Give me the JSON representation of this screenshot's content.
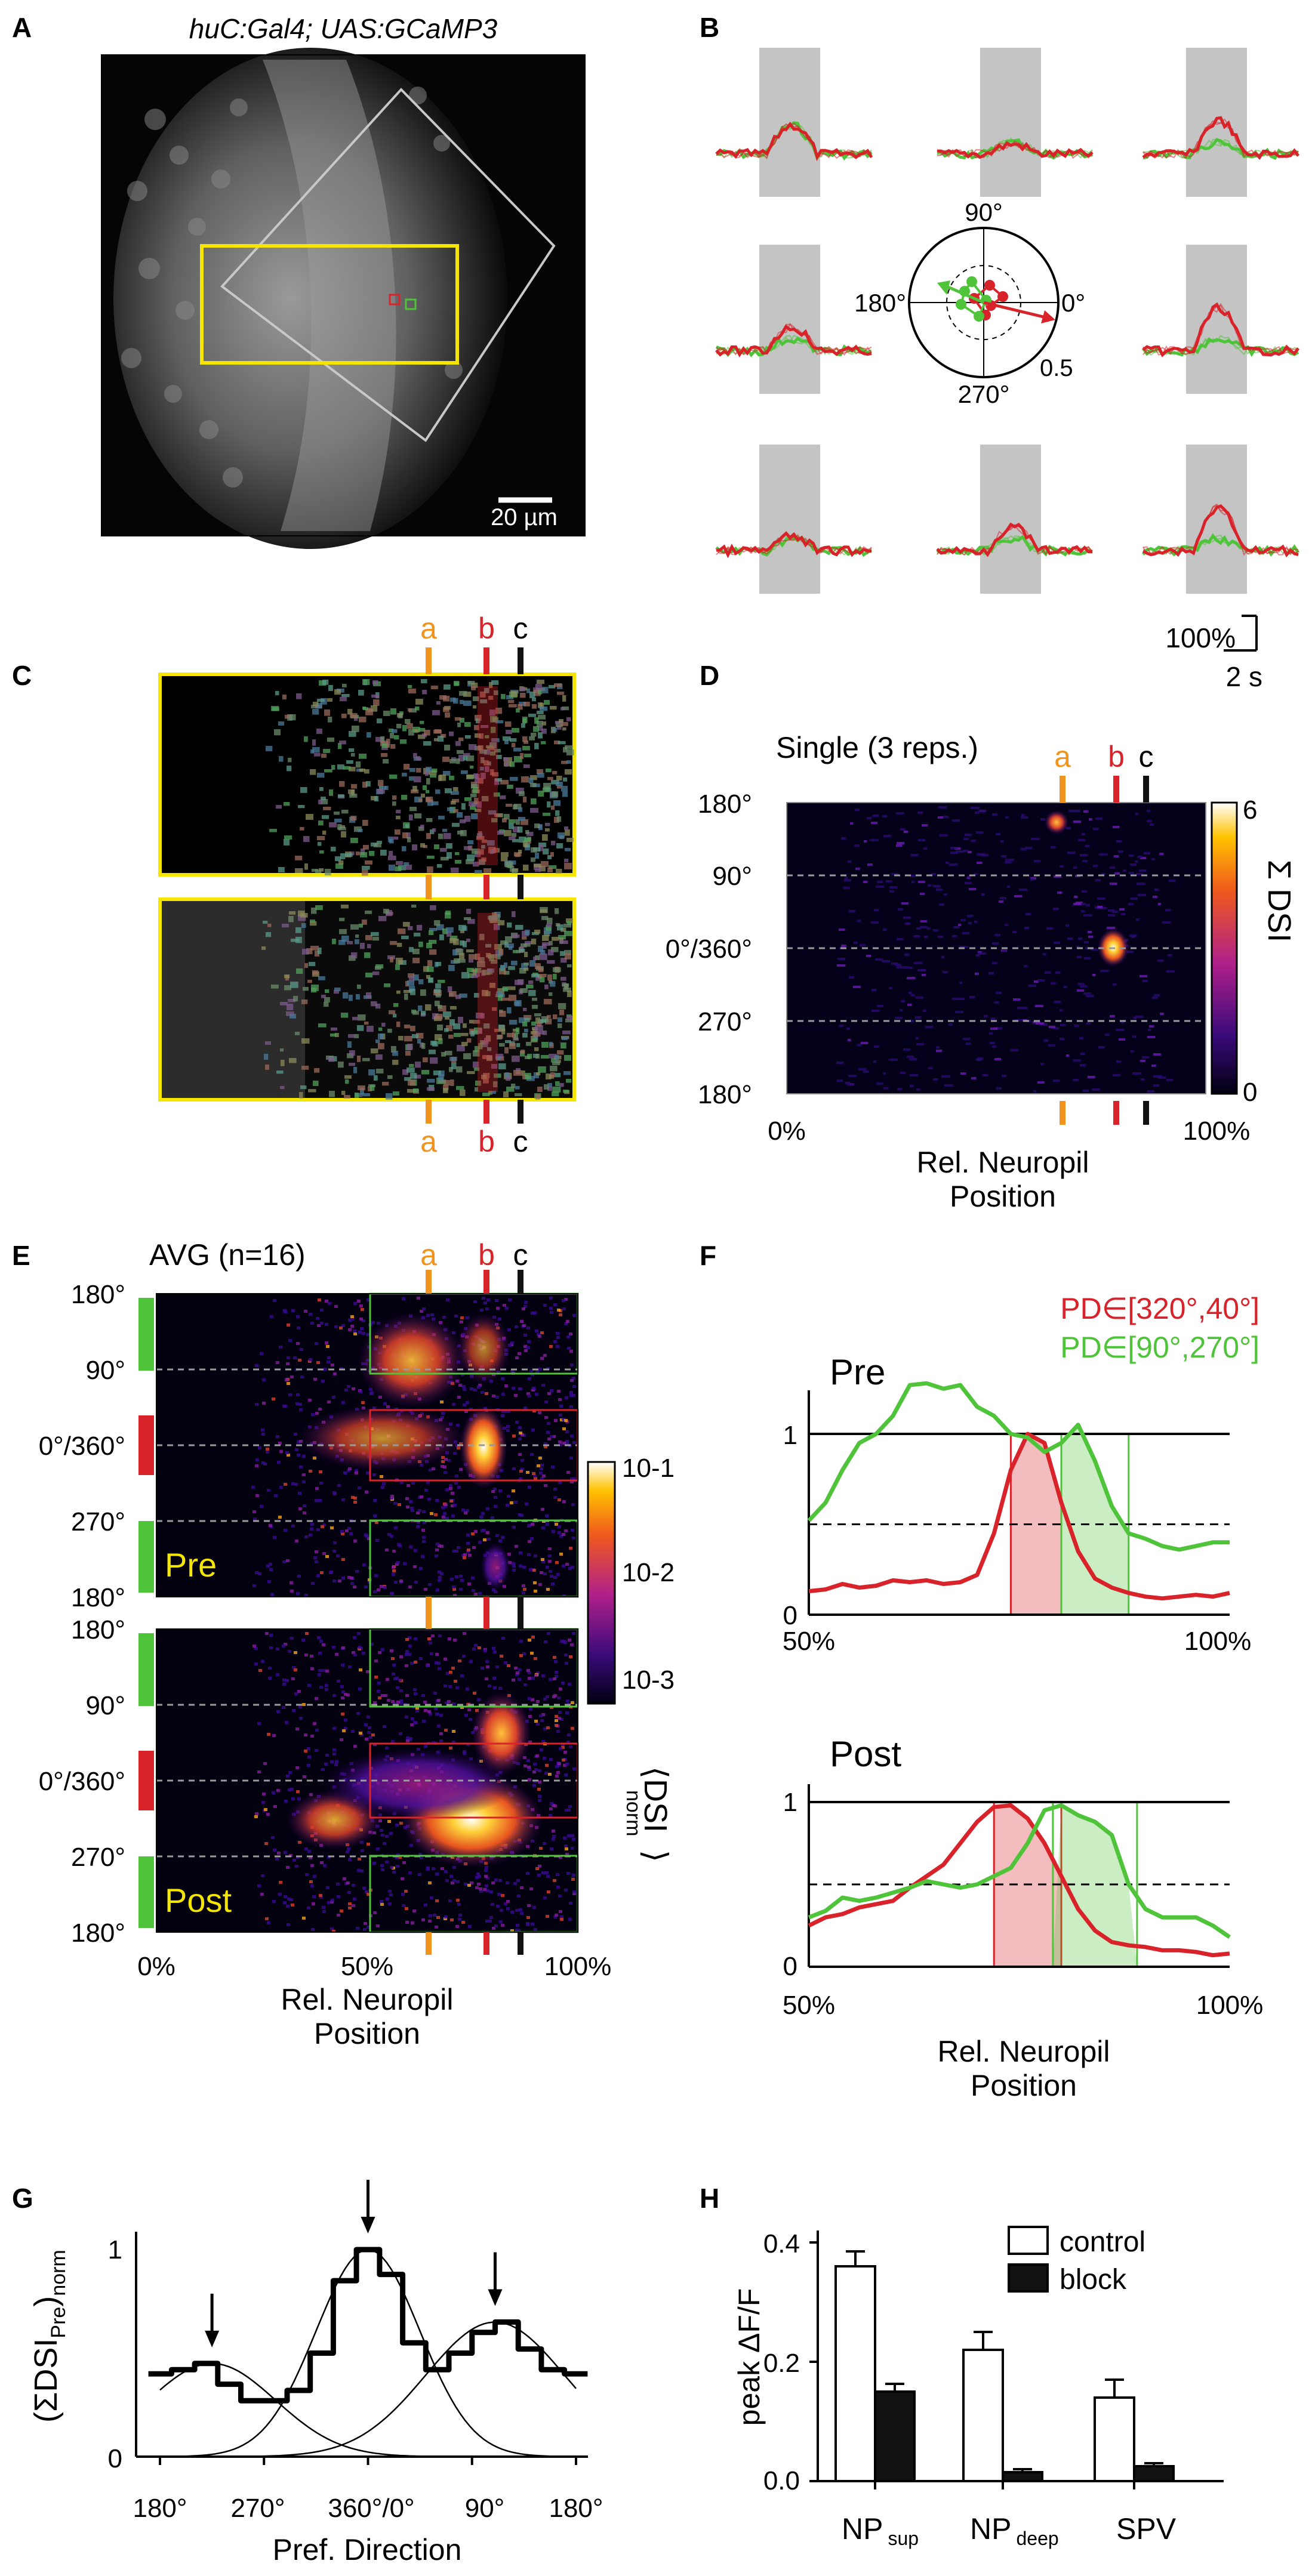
{
  "panel_A": {
    "letter": "A",
    "title": "huC:Gal4; UAS:GCaMP3",
    "scalebar": "20 µm"
  },
  "panel_B": {
    "letter": "B",
    "polar_ticks": [
      "90°",
      "180°",
      "0°",
      "270°"
    ],
    "polar_radius_label": "0.5",
    "scale_y": "100%",
    "scale_x": "2 s"
  },
  "panel_C": {
    "letter": "C",
    "markers": [
      "a",
      "b",
      "c"
    ]
  },
  "panel_D": {
    "letter": "D",
    "title": "Single (3 reps.)",
    "y_ticks": [
      "180°",
      "90°",
      "0°/360°",
      "270°",
      "180°"
    ],
    "x_ticks": [
      "0%",
      "100%"
    ],
    "xlabel_line1": "Rel. Neuropil",
    "xlabel_line2": "Position",
    "colorbar_max": "6",
    "colorbar_min": "0",
    "colorbar_label": "Σ DSI",
    "markers": [
      "a",
      "b",
      "c"
    ]
  },
  "panel_E": {
    "letter": "E",
    "title": "AVG (n=16)",
    "y_ticks": [
      "180°",
      "90°",
      "0°/360°",
      "270°",
      "180°"
    ],
    "x_ticks": [
      "0%",
      "50%",
      "100%"
    ],
    "xlabel_line1": "Rel. Neuropil",
    "xlabel_line2": "Position",
    "colorbar_ticks": [
      "10-1",
      "10-2",
      "10-3"
    ],
    "colorbar_label": "⟨DSI",
    "colorbar_label_sub": "norm",
    "pre_label": "Pre",
    "post_label": "Post",
    "markers": [
      "a",
      "b",
      "c"
    ]
  },
  "panel_F": {
    "letter": "F",
    "legend_red": "PD∈[320°,40°]",
    "legend_green": "PD∈[90°,270°]",
    "pre_label": "Pre",
    "post_label": "Post",
    "y_ticks": [
      "1",
      "0.5",
      "0"
    ],
    "x_ticks": [
      "50%",
      "100%"
    ],
    "xlabel_line1": "Rel. Neuropil",
    "xlabel_line2": "Position"
  },
  "panel_G": {
    "letter": "G",
    "ylabel": "(ΣDSI",
    "ylabel_sub1": "Pre",
    "ylabel_end": ")",
    "ylabel_sub2": "norm",
    "y_ticks": [
      "1",
      "0"
    ],
    "x_ticks": [
      "180°",
      "270°",
      "360°/0°",
      "90°",
      "180°"
    ],
    "xlabel": "Pref. Direction"
  },
  "panel_H": {
    "letter": "H",
    "ylabel": "peak ΔF/F",
    "y_ticks": [
      "0.4",
      "0.2",
      "0.0"
    ],
    "legend": [
      "control",
      "block"
    ],
    "categories": [
      {
        "main": "NP",
        "sub": "sup"
      },
      {
        "main": "NP",
        "sub": "deep"
      },
      {
        "main": "SPV",
        "sub": ""
      }
    ]
  },
  "colors": {
    "green": "#4fc43a",
    "red": "#d8232a",
    "orange": "#f0941d",
    "yellow_box": "#f5e600"
  },
  "chart_data": [
    {
      "type": "line",
      "title": "Pre",
      "x_range": [
        50,
        100
      ],
      "ylim": [
        0,
        1.3
      ],
      "x": [
        50,
        52,
        54,
        56,
        58,
        60,
        62,
        64,
        66,
        68,
        70,
        72,
        74,
        76,
        78,
        80,
        82,
        84,
        86,
        88,
        90,
        92,
        94,
        96,
        98,
        100
      ],
      "series": [
        {
          "name": "PD∈[320°,40°]",
          "values": [
            0.13,
            0.14,
            0.17,
            0.15,
            0.16,
            0.19,
            0.18,
            0.19,
            0.17,
            0.18,
            0.22,
            0.45,
            0.8,
            1.0,
            0.95,
            0.62,
            0.35,
            0.2,
            0.15,
            0.12,
            0.1,
            0.09,
            0.1,
            0.11,
            0.1,
            0.12
          ]
        },
        {
          "name": "PD∈[90°,270°]",
          "values": [
            0.52,
            0.62,
            0.8,
            0.95,
            1.0,
            1.1,
            1.27,
            1.28,
            1.25,
            1.27,
            1.15,
            1.1,
            1.0,
            0.98,
            0.9,
            0.95,
            1.05,
            0.85,
            0.6,
            0.45,
            0.42,
            0.38,
            0.36,
            0.38,
            0.4,
            0.4
          ]
        }
      ]
    },
    {
      "type": "line",
      "title": "Post",
      "x_range": [
        50,
        100
      ],
      "ylim": [
        0,
        1.1
      ],
      "x": [
        50,
        52,
        54,
        56,
        58,
        60,
        62,
        64,
        66,
        68,
        70,
        72,
        74,
        76,
        78,
        80,
        82,
        84,
        86,
        88,
        90,
        92,
        94,
        96,
        98,
        100
      ],
      "series": [
        {
          "name": "PD∈[320°,40°]",
          "values": [
            0.25,
            0.3,
            0.32,
            0.36,
            0.38,
            0.4,
            0.48,
            0.55,
            0.62,
            0.75,
            0.88,
            0.97,
            0.98,
            0.9,
            0.75,
            0.55,
            0.35,
            0.22,
            0.15,
            0.13,
            0.12,
            0.1,
            0.1,
            0.09,
            0.07,
            0.08
          ]
        },
        {
          "name": "PD∈[90°,270°]",
          "values": [
            0.3,
            0.34,
            0.42,
            0.4,
            0.42,
            0.45,
            0.48,
            0.52,
            0.5,
            0.48,
            0.5,
            0.55,
            0.6,
            0.75,
            0.95,
            0.98,
            0.92,
            0.88,
            0.8,
            0.5,
            0.35,
            0.3,
            0.3,
            0.3,
            0.25,
            0.18
          ]
        }
      ]
    },
    {
      "type": "line",
      "title": "",
      "xlabel": "Pref. Direction",
      "ylabel": "(ΣDSIPre)norm",
      "ylim": [
        0,
        1
      ],
      "x": [
        180,
        200,
        220,
        240,
        260,
        280,
        300,
        320,
        340,
        360,
        380,
        400,
        420,
        440,
        460,
        480,
        500,
        520,
        540
      ],
      "series": [
        {
          "name": "",
          "values": [
            0.4,
            0.42,
            0.45,
            0.35,
            0.27,
            0.27,
            0.32,
            0.5,
            0.85,
            1.0,
            0.88,
            0.55,
            0.42,
            0.5,
            0.6,
            0.65,
            0.52,
            0.42,
            0.4
          ]
        }
      ]
    },
    {
      "type": "bar",
      "categories": [
        "NP sup",
        "NP deep",
        "SPV"
      ],
      "ylabel": "peak ΔF/F",
      "ylim": [
        0,
        0.4
      ],
      "series": [
        {
          "name": "control",
          "values": [
            0.36,
            0.22,
            0.14
          ],
          "errors": [
            0.025,
            0.03,
            0.03
          ]
        },
        {
          "name": "block",
          "values": [
            0.15,
            0.015,
            0.025
          ],
          "errors": [
            0.013,
            0.005,
            0.005
          ]
        }
      ]
    }
  ]
}
